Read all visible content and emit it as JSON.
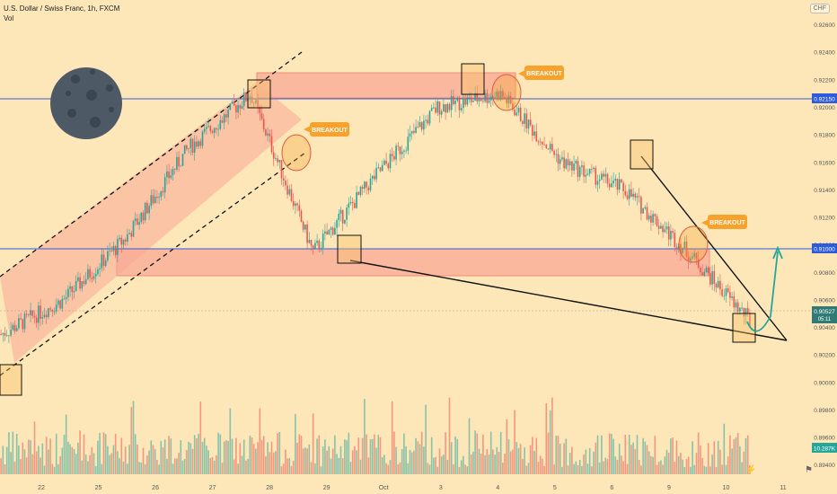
{
  "header": {
    "symbol_line": "U.S. Dollar / Swiss Franc, 1h, FXCM",
    "vol_label": "Vol",
    "currency_button": "CHF"
  },
  "breakout_labels": [
    "BREAKOUT",
    "BREAKOUT",
    "BREAKOUT"
  ],
  "price_axis": {
    "ticks": [
      "0.92600",
      "0.92400",
      "0.92200",
      "0.92000",
      "0.91800",
      "0.91600",
      "0.91400",
      "0.91200",
      "0.91000",
      "0.90800",
      "0.90600",
      "0.90400",
      "0.90200",
      "0.90000",
      "0.89800",
      "0.89600",
      "0.89400"
    ],
    "ylim": [
      0.8932,
      0.9278
    ],
    "highlight_labels": {
      "top_resistance": "0.92150",
      "support": "0.91000",
      "last_price": "0.90527",
      "countdown": "05:11",
      "volume": "10.287K"
    }
  },
  "time_axis": {
    "ticks": [
      "22",
      "25",
      "26",
      "27",
      "28",
      "29",
      "Oct",
      "3",
      "4",
      "5",
      "6",
      "9",
      "10",
      "11"
    ]
  },
  "colors": {
    "background": "#fde7b8",
    "zone_fill": "#f8a896",
    "zone_line": "#f08c7a",
    "level_line": "#2e5bdc",
    "up": "#26a69a",
    "down": "#ef5350",
    "moon": "#4e5966",
    "label_bg": "#f7a22c"
  },
  "icons": {
    "moon": "moon-icon",
    "flash": "flash-icon",
    "flag": "flag-icon"
  },
  "chart_data": {
    "type": "line",
    "title": "U.S. Dollar / Swiss Franc, 1h, FXCM",
    "xlabel": "",
    "ylabel": "",
    "x": [
      "22",
      "25",
      "26",
      "27",
      "28",
      "29",
      "Oct",
      "3",
      "4",
      "5",
      "6",
      "9",
      "10"
    ],
    "series": [
      {
        "values": [
          0.9035,
          0.906,
          0.9105,
          0.917,
          0.921,
          0.9095,
          0.915,
          0.92,
          0.921,
          0.916,
          0.914,
          0.9095,
          0.9045
        ]
      }
    ],
    "levels": [
      0.9215,
      0.91,
      0.90527
    ],
    "grid": false,
    "legend": "none"
  }
}
